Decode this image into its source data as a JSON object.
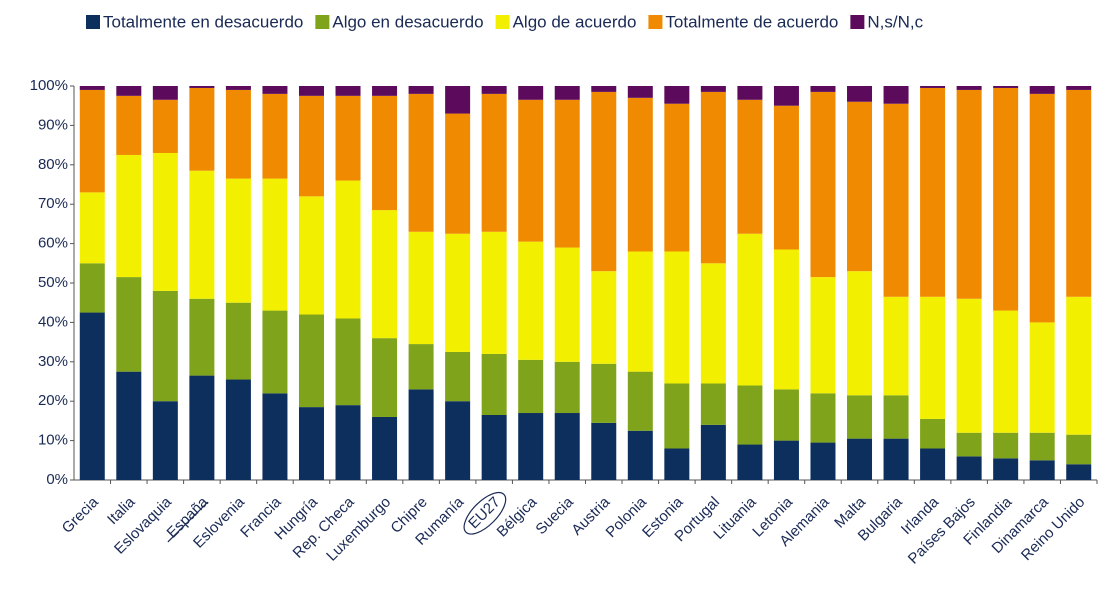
{
  "chart_data": {
    "type": "stacked_bar_100",
    "categories": [
      "Grecia",
      "Italia",
      "Eslovaquia",
      "España",
      "Eslovenia",
      "Francia",
      "Hungría",
      "Rep. Checa",
      "Luxemburgo",
      "Chipre",
      "Rumanía",
      "EU27",
      "Bélgica",
      "Suecia",
      "Austria",
      "Polonia",
      "Estonia",
      "Portugal",
      "Lituania",
      "Letonia",
      "Alemania",
      "Malta",
      "Bulgaria",
      "Irlanda",
      "Países Bajos",
      "Finlandia",
      "Dinamarca",
      "Reino Unido"
    ],
    "series": [
      {
        "name": "Totalmente en desacuerdo",
        "color": "#0c2f5e",
        "values": [
          42.5,
          27.5,
          20,
          26.5,
          25.5,
          22,
          18.5,
          19,
          16,
          23,
          20,
          16.5,
          17,
          17,
          14.5,
          12.5,
          8,
          14,
          9,
          10,
          9.5,
          10.5,
          10.5,
          8,
          6,
          5.5,
          5,
          4
        ]
      },
      {
        "name": "Algo en desacuerdo",
        "color": "#7fa31a",
        "values": [
          12.5,
          24,
          28,
          19.5,
          19.5,
          21,
          23.5,
          22,
          20,
          11.5,
          12.5,
          15.5,
          13.5,
          13,
          15,
          15,
          16.5,
          10.5,
          15,
          13,
          12.5,
          11,
          11,
          7.5,
          6,
          6.5,
          7,
          7.5
        ]
      },
      {
        "name": "Algo de acuerdo",
        "color": "#f2f000",
        "values": [
          18,
          31,
          35,
          32.5,
          31.5,
          33.5,
          30,
          35,
          32.5,
          28.5,
          30,
          31,
          30,
          29,
          23.5,
          30.5,
          33.5,
          30.5,
          38.5,
          35.5,
          29.5,
          31.5,
          25,
          31,
          34,
          31,
          28,
          35
        ]
      },
      {
        "name": "Totalmente de acuerdo",
        "color": "#f08a00",
        "values": [
          26,
          15,
          13.5,
          21,
          22.5,
          21.5,
          25.5,
          21.5,
          29,
          35,
          30.5,
          35,
          36,
          37.5,
          45.5,
          39,
          37.5,
          43.5,
          34,
          36.5,
          47,
          43,
          49,
          53,
          53,
          56.5,
          58,
          52.5
        ]
      },
      {
        "name": "N,s/N,c",
        "color": "#5c0a5c",
        "values": [
          1,
          2.5,
          3.5,
          0.5,
          1,
          2,
          2.5,
          2.5,
          2.5,
          2,
          7,
          2,
          3.5,
          3.5,
          1.5,
          3,
          4.5,
          1.5,
          3.5,
          5,
          1.5,
          4,
          4.5,
          0.5,
          1,
          0.5,
          2,
          1
        ]
      }
    ],
    "ylim": [
      0,
      100
    ],
    "yticks": [
      {
        "value": 0,
        "label": "0%"
      },
      {
        "value": 10,
        "label": "10%"
      },
      {
        "value": 20,
        "label": "20%"
      },
      {
        "value": 30,
        "label": "30%"
      },
      {
        "value": 40,
        "label": "40%"
      },
      {
        "value": 50,
        "label": "50%"
      },
      {
        "value": 60,
        "label": "60%"
      },
      {
        "value": 70,
        "label": "70%"
      },
      {
        "value": 80,
        "label": "80%"
      },
      {
        "value": 90,
        "label": "90%"
      },
      {
        "value": 100,
        "label": "100%"
      }
    ],
    "grid": false,
    "legend": "top",
    "underlined": [
      3
    ],
    "circled": [
      11
    ]
  }
}
